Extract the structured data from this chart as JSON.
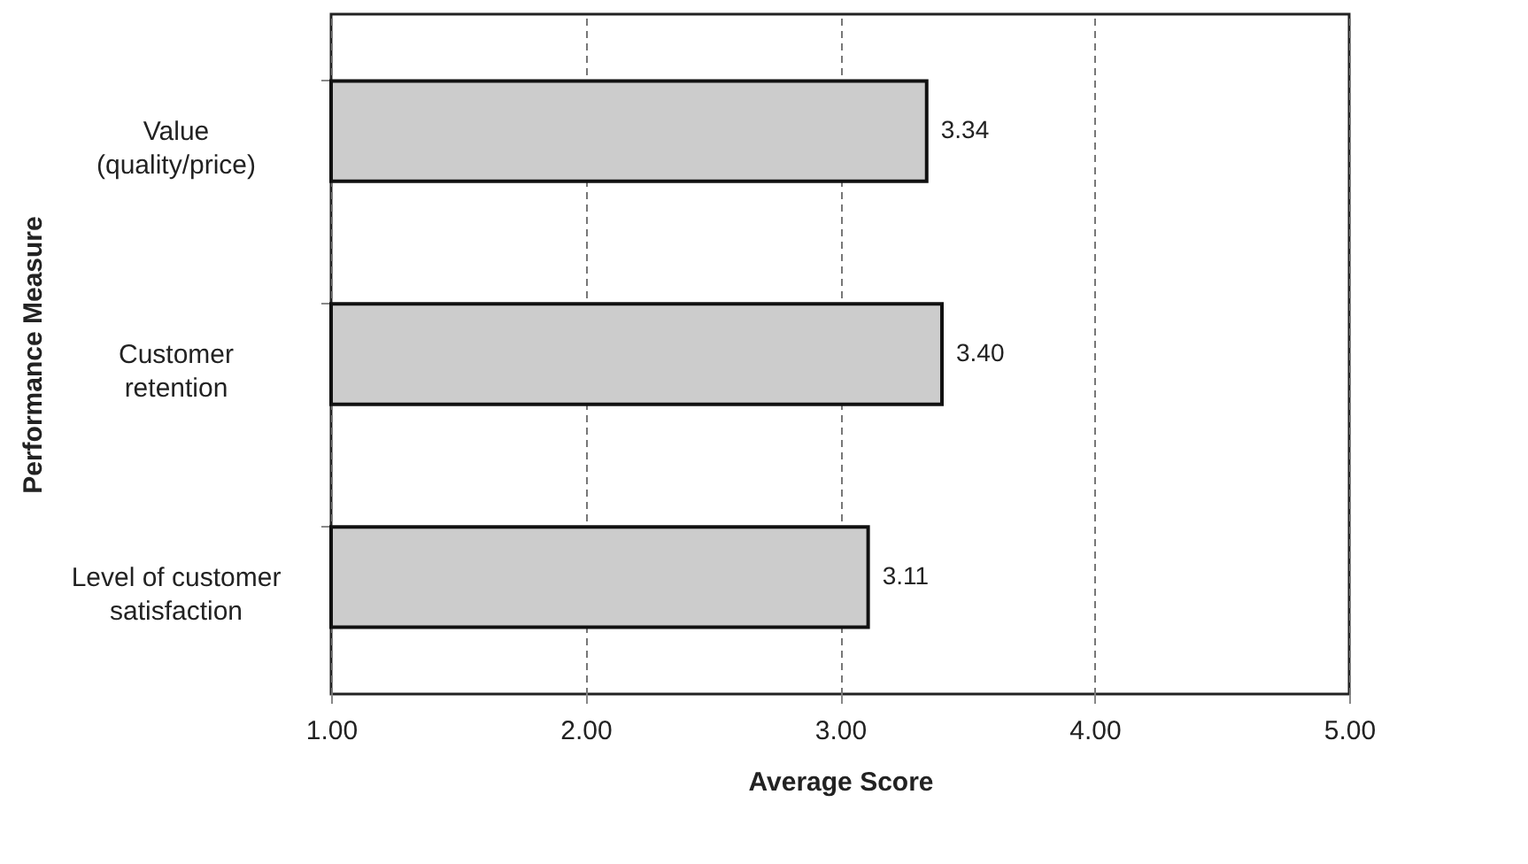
{
  "chart_data": {
    "type": "bar",
    "orientation": "horizontal",
    "xlabel": "Average Score",
    "ylabel": "Performance Measure",
    "categories": [
      "Value\n(quality/price)",
      "Customer\nretention",
      "Level of customer\nsatisfaction"
    ],
    "values": [
      3.34,
      3.4,
      3.11
    ],
    "value_labels": [
      "3.34",
      "3.40",
      "3.11"
    ],
    "color": "#cccccc",
    "xlim": [
      1,
      5
    ],
    "xticks": [
      {
        "value": 1,
        "label": "1.00"
      },
      {
        "value": 2,
        "label": "2.00"
      },
      {
        "value": 3,
        "label": "3.00"
      },
      {
        "value": 4,
        "label": "4.00"
      },
      {
        "value": 5,
        "label": "5.00"
      }
    ],
    "grid": "x"
  }
}
